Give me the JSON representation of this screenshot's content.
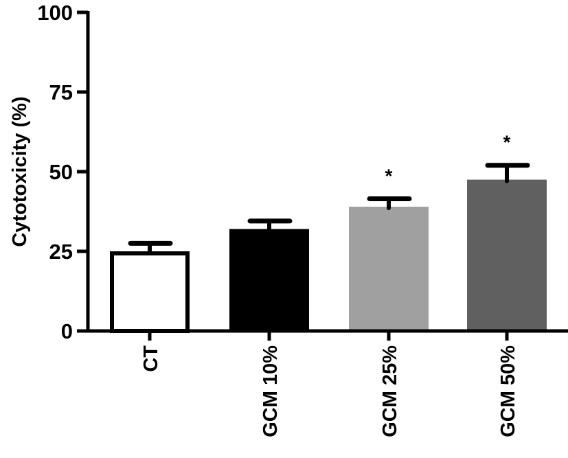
{
  "chart_data": {
    "type": "bar",
    "title": "",
    "xlabel": "",
    "ylabel": "Cytotoxicity (%)",
    "ylim": [
      0,
      100
    ],
    "yticks": [
      "0",
      "25",
      "50",
      "75",
      "100"
    ],
    "categories": [
      "CT",
      "GCM 10%",
      "GCM 25%",
      "GCM 50%"
    ],
    "values": [
      25,
      32,
      39,
      47.5
    ],
    "error_upper": [
      27.5,
      34.5,
      41.5,
      52
    ],
    "colors": [
      "#ffffff",
      "#000000",
      "#a0a0a0",
      "#606060"
    ],
    "significance": [
      "",
      "",
      "*",
      "*"
    ],
    "grid": false,
    "legend": "none"
  }
}
